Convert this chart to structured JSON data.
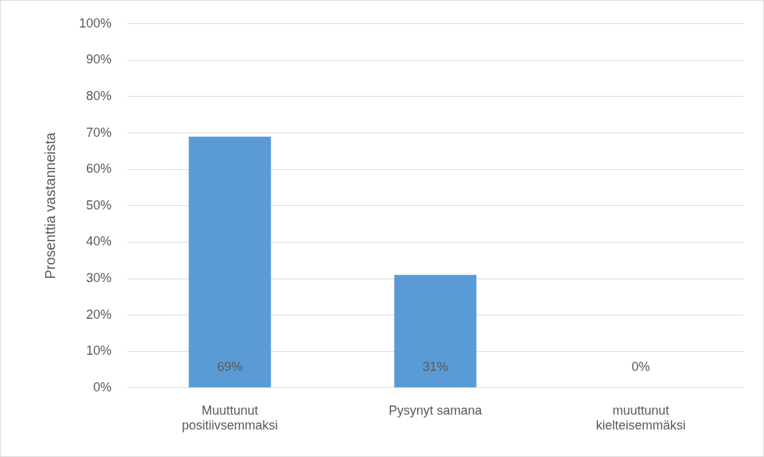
{
  "chart_data": {
    "type": "bar",
    "ylabel": "Prosenttia vastanneista",
    "categories": [
      "Muuttunut positiivsemmaksi",
      "Pysynyt samana",
      "muuttunut kielteisemmäksi"
    ],
    "values": [
      69,
      31,
      0
    ],
    "value_labels": [
      "69%",
      "31%",
      "0%"
    ],
    "color": "#5b9bd5",
    "ylim": [
      0,
      100
    ],
    "yticks": [
      {
        "value": 0,
        "label": "0%"
      },
      {
        "value": 10,
        "label": "10%"
      },
      {
        "value": 20,
        "label": "20%"
      },
      {
        "value": 30,
        "label": "30%"
      },
      {
        "value": 40,
        "label": "40%"
      },
      {
        "value": 50,
        "label": "50%"
      },
      {
        "value": 60,
        "label": "60%"
      },
      {
        "value": 70,
        "label": "70%"
      },
      {
        "value": 80,
        "label": "80%"
      },
      {
        "value": 90,
        "label": "90%"
      },
      {
        "value": 100,
        "label": "100%"
      }
    ],
    "grid": "y",
    "legend": false
  }
}
